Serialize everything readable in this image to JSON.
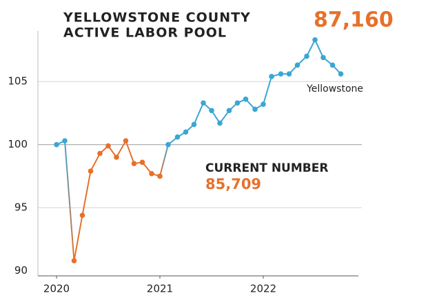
{
  "chart_data": {
    "type": "line",
    "title_lines": [
      "YELLOWSTONE COUNTY",
      "ACTIVE LABOR POOL"
    ],
    "headline": "87,160",
    "annotation_label": "CURRENT NUMBER",
    "annotation_value": "85,709",
    "series_label": "Yellowstone",
    "x": [
      2020,
      2020.08,
      2020.17,
      2020.25,
      2020.33,
      2020.42,
      2020.5,
      2020.58,
      2020.67,
      2020.75,
      2020.83,
      2020.92,
      2021,
      2021.08,
      2021.17,
      2021.25,
      2021.33,
      2021.42,
      2021.5,
      2021.58,
      2021.67,
      2021.75,
      2021.83,
      2021.92,
      2022,
      2022.08,
      2022.17,
      2022.25,
      2022.33,
      2022.42,
      2022.5,
      2022.58,
      2022.67,
      2022.75
    ],
    "values": [
      100.0,
      100.3,
      90.8,
      94.4,
      97.9,
      99.3,
      99.9,
      99.0,
      100.3,
      98.5,
      98.6,
      97.7,
      97.5,
      100.0,
      100.6,
      101.0,
      101.6,
      103.3,
      102.7,
      101.7,
      102.7,
      103.3,
      103.6,
      102.8,
      103.2,
      105.4,
      105.6,
      105.6,
      106.3,
      107.0,
      108.3,
      106.9,
      106.3,
      105.6
    ],
    "point_colors": [
      "#3aa6d5",
      "#3aa6d5",
      "#e8702a",
      "#e8702a",
      "#e8702a",
      "#e8702a",
      "#e8702a",
      "#e8702a",
      "#e8702a",
      "#e8702a",
      "#e8702a",
      "#e8702a",
      "#e8702a",
      "#3aa6d5",
      "#3aa6d5",
      "#3aa6d5",
      "#3aa6d5",
      "#3aa6d5",
      "#3aa6d5",
      "#3aa6d5",
      "#3aa6d5",
      "#3aa6d5",
      "#3aa6d5",
      "#3aa6d5",
      "#3aa6d5",
      "#3aa6d5",
      "#3aa6d5",
      "#3aa6d5",
      "#3aa6d5",
      "#3aa6d5",
      "#3aa6d5",
      "#3aa6d5",
      "#3aa6d5",
      "#3aa6d5"
    ],
    "accent_color": "#e8702a",
    "xlim": [
      2019.82,
      2022.92
    ],
    "xticks": [
      2020,
      2021,
      2022
    ],
    "ylim": [
      89.6,
      109
    ],
    "yticks": [
      90,
      95,
      100,
      105
    ],
    "grid": true
  }
}
